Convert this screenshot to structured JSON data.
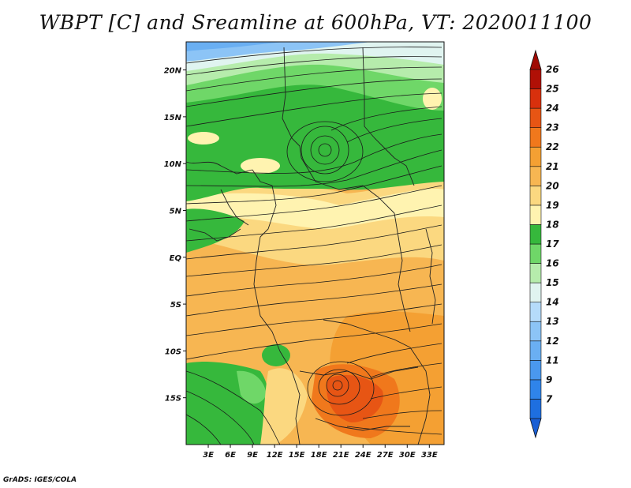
{
  "title": "WBPT [C] and Sreamline at 600hPa, VT: 2020011100",
  "credit": "GrADS: IGES/COLA",
  "map": {
    "lon_range": [
      0,
      35
    ],
    "lat_range": [
      -20,
      23
    ],
    "x_ticks": [
      {
        "value": 3,
        "label": "3E"
      },
      {
        "value": 6,
        "label": "6E"
      },
      {
        "value": 9,
        "label": "9E"
      },
      {
        "value": 12,
        "label": "12E"
      },
      {
        "value": 15,
        "label": "15E"
      },
      {
        "value": 18,
        "label": "18E"
      },
      {
        "value": 21,
        "label": "21E"
      },
      {
        "value": 24,
        "label": "24E"
      },
      {
        "value": 27,
        "label": "27E"
      },
      {
        "value": 30,
        "label": "30E"
      },
      {
        "value": 33,
        "label": "33E"
      }
    ],
    "y_ticks": [
      {
        "value": 20,
        "label": "20N"
      },
      {
        "value": 15,
        "label": "15N"
      },
      {
        "value": 10,
        "label": "10N"
      },
      {
        "value": 5,
        "label": "5N"
      },
      {
        "value": 0,
        "label": "EQ"
      },
      {
        "value": -5,
        "label": "5S"
      },
      {
        "value": -10,
        "label": "10S"
      },
      {
        "value": -15,
        "label": "15S"
      }
    ]
  },
  "colorbar": {
    "levels": [
      {
        "label": "7",
        "color": "#1e6fe0"
      },
      {
        "label": "9",
        "color": "#2f84ea"
      },
      {
        "label": "11",
        "color": "#4a98ee"
      },
      {
        "label": "12",
        "color": "#6aaff2"
      },
      {
        "label": "13",
        "color": "#8cc4f6"
      },
      {
        "label": "14",
        "color": "#b5dbfa"
      },
      {
        "label": "15",
        "color": "#e0f4f0"
      },
      {
        "label": "16",
        "color": "#b6ecac"
      },
      {
        "label": "17",
        "color": "#6fd768"
      },
      {
        "label": "18",
        "color": "#36b83c"
      },
      {
        "label": "19",
        "color": "#fff3b0"
      },
      {
        "label": "20",
        "color": "#fbd880"
      },
      {
        "label": "21",
        "color": "#f7b652"
      },
      {
        "label": "22",
        "color": "#f4a033"
      },
      {
        "label": "23",
        "color": "#f0781c"
      },
      {
        "label": "24",
        "color": "#e75514"
      },
      {
        "label": "25",
        "color": "#d8300d"
      },
      {
        "label": "26",
        "color": "#b01006"
      }
    ],
    "under_color": "#1a5fd4",
    "over_color": "#a00a04"
  },
  "streamline_color": "#1a1a1a"
}
